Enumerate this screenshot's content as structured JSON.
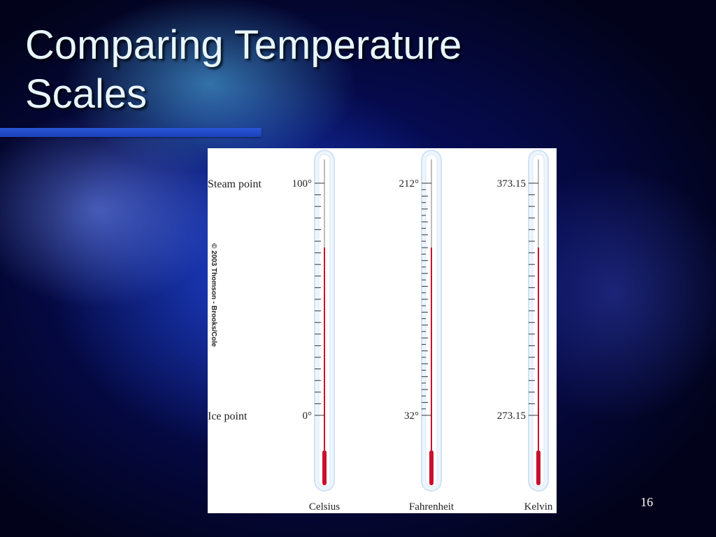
{
  "slide": {
    "title": "Comparing Temperature Scales",
    "page_number": "16"
  },
  "figure": {
    "labels": {
      "steam_point": "Steam point",
      "ice_point": "Ice point"
    },
    "credit": "© 2003 Thomson - Brooks/Cole",
    "colors": {
      "mercury": "#c8102e",
      "glass": "#cfe2f5",
      "bore": "#bdbdbd"
    },
    "thermometers": [
      {
        "name": "Celsius",
        "steam_label": "100°",
        "ice_label": "0°",
        "steam_value": 100,
        "ice_value": 0
      },
      {
        "name": "Fahrenheit",
        "steam_label": "212°",
        "ice_label": "32°",
        "steam_value": 212,
        "ice_value": 32
      },
      {
        "name": "Kelvin",
        "steam_label": "373.15",
        "ice_label": "273.15",
        "steam_value": 373.15,
        "ice_value": 273.15
      }
    ]
  }
}
